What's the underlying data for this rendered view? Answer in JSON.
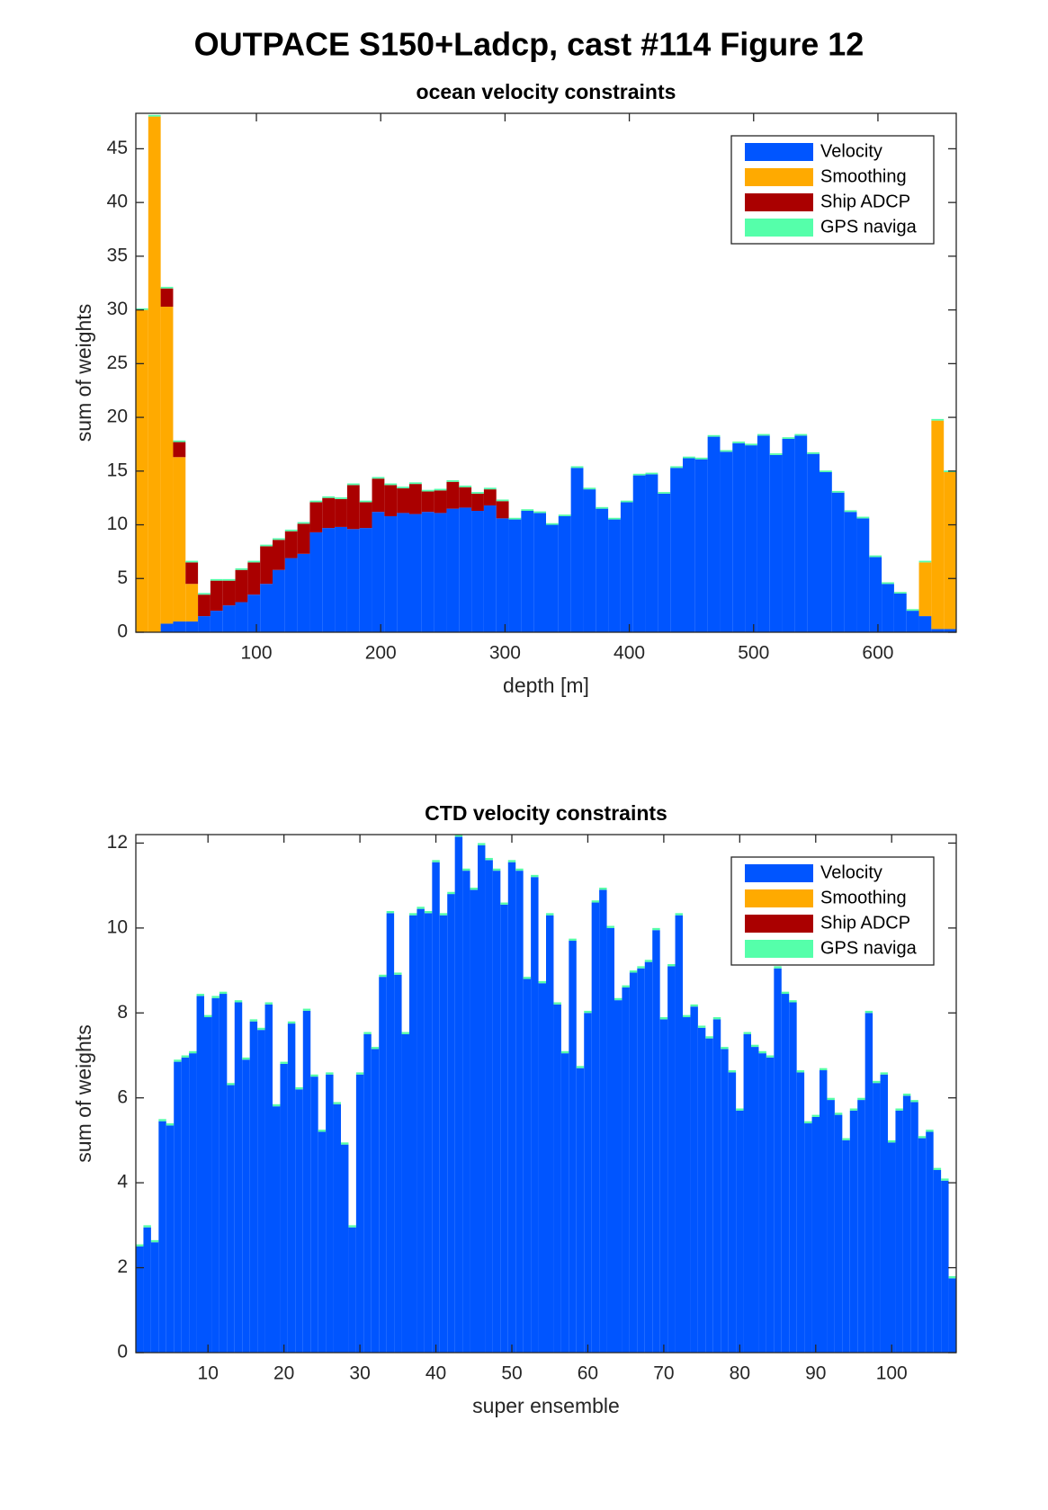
{
  "figure_title": "OUTPACE S150+Ladcp, cast #114  Figure 12",
  "chart_data": [
    {
      "type": "bar",
      "stacked": true,
      "title": "ocean velocity constraints",
      "xlabel": "depth [m]",
      "ylabel": "sum of weights",
      "x": [
        8,
        18,
        28,
        38,
        48,
        58,
        68,
        78,
        88,
        98,
        108,
        118,
        128,
        138,
        148,
        158,
        168,
        178,
        188,
        198,
        208,
        218,
        228,
        238,
        248,
        258,
        268,
        278,
        288,
        298,
        308,
        318,
        328,
        338,
        348,
        358,
        368,
        378,
        388,
        398,
        408,
        418,
        428,
        438,
        448,
        458,
        468,
        478,
        488,
        498,
        508,
        518,
        528,
        538,
        548,
        558,
        568,
        578,
        588,
        598,
        608,
        618,
        628,
        638,
        648,
        658
      ],
      "series": [
        {
          "name": "Velocity",
          "color": "#0055ff",
          "values": [
            0,
            0,
            0.8,
            1,
            1,
            1.5,
            2,
            2.5,
            2.8,
            3.5,
            4.5,
            5.8,
            6.9,
            7.3,
            9.3,
            9.7,
            9.8,
            9.6,
            9.7,
            11.2,
            10.8,
            11.1,
            11,
            11.2,
            11.1,
            11.5,
            11.6,
            11.3,
            11.8,
            10.6,
            10.5,
            11.3,
            11.1,
            10,
            10.8,
            15.3,
            13.3,
            11.5,
            10.5,
            12.1,
            14.6,
            14.7,
            12.9,
            15.3,
            16.2,
            16.1,
            18.2,
            16.8,
            17.6,
            17.4,
            18.3,
            16.5,
            18,
            18.3,
            16.6,
            14.9,
            13,
            11.2,
            10.6,
            7,
            4.5,
            3.6,
            2,
            1.5,
            0.3,
            0.3
          ]
        },
        {
          "name": "Smoothing",
          "color": "#ffaa00",
          "values": [
            30,
            48,
            29.5,
            15.3,
            3.5,
            0,
            0,
            0,
            0,
            0,
            0,
            0,
            0,
            0,
            0,
            0,
            0,
            0,
            0,
            0,
            0,
            0,
            0,
            0,
            0,
            0,
            0,
            0,
            0,
            0,
            0,
            0,
            0,
            0,
            0,
            0,
            0,
            0,
            0,
            0,
            0,
            0,
            0,
            0,
            0,
            0,
            0,
            0,
            0,
            0,
            0,
            0,
            0,
            0,
            0,
            0,
            0,
            0,
            0,
            0,
            0,
            0,
            0,
            5,
            19.4,
            14.6
          ]
        },
        {
          "name": "Ship ADCP",
          "color": "#aa0000",
          "values": [
            0,
            0,
            1.7,
            1.4,
            2,
            2,
            2.8,
            2.3,
            3,
            3,
            3.5,
            2.8,
            2.5,
            2.8,
            2.8,
            2.8,
            2.6,
            4.1,
            2.4,
            3.1,
            2.9,
            2.3,
            2.8,
            1.9,
            2.1,
            2.5,
            1.9,
            1.6,
            1.5,
            1.6,
            0,
            0,
            0,
            0,
            0,
            0,
            0,
            0,
            0,
            0,
            0,
            0,
            0,
            0,
            0,
            0,
            0,
            0,
            0,
            0,
            0,
            0,
            0,
            0,
            0,
            0,
            0,
            0,
            0,
            0,
            0,
            0,
            0,
            0,
            0,
            0
          ]
        },
        {
          "name": "GPS naviga",
          "color": "#55ffaa",
          "values": [
            0.15,
            0.15,
            0.15,
            0.15,
            0.15,
            0.15,
            0.15,
            0.15,
            0.15,
            0.15,
            0.15,
            0.15,
            0.15,
            0.15,
            0.15,
            0.15,
            0.15,
            0.15,
            0.15,
            0.15,
            0.15,
            0.15,
            0.15,
            0.15,
            0.15,
            0.15,
            0.15,
            0.15,
            0.15,
            0.15,
            0.15,
            0.15,
            0.15,
            0.15,
            0.15,
            0.15,
            0.15,
            0.15,
            0.15,
            0.15,
            0.15,
            0.15,
            0.15,
            0.15,
            0.15,
            0.15,
            0.15,
            0.15,
            0.15,
            0.15,
            0.15,
            0.15,
            0.15,
            0.15,
            0.15,
            0.15,
            0.15,
            0.15,
            0.15,
            0.15,
            0.15,
            0.15,
            0.15,
            0.15,
            0.15,
            0.15
          ]
        }
      ],
      "xlim": [
        3,
        663
      ],
      "xticks": [
        100,
        200,
        300,
        400,
        500,
        600
      ],
      "ylim": [
        0,
        48.3
      ],
      "yticks": [
        0,
        5,
        10,
        15,
        20,
        25,
        30,
        35,
        40,
        45
      ],
      "legend": "upper right"
    },
    {
      "type": "bar",
      "stacked": true,
      "title": "CTD velocity constraints",
      "xlabel": "super ensemble",
      "ylabel": "sum of weights",
      "x": [
        1,
        2,
        3,
        4,
        5,
        6,
        7,
        8,
        9,
        10,
        11,
        12,
        13,
        14,
        15,
        16,
        17,
        18,
        19,
        20,
        21,
        22,
        23,
        24,
        25,
        26,
        27,
        28,
        29,
        30,
        31,
        32,
        33,
        34,
        35,
        36,
        37,
        38,
        39,
        40,
        41,
        42,
        43,
        44,
        45,
        46,
        47,
        48,
        49,
        50,
        51,
        52,
        53,
        54,
        55,
        56,
        57,
        58,
        59,
        60,
        61,
        62,
        63,
        64,
        65,
        66,
        67,
        68,
        69,
        70,
        71,
        72,
        73,
        74,
        75,
        76,
        77,
        78,
        79,
        80,
        81,
        82,
        83,
        84,
        85,
        86,
        87,
        88,
        89,
        90,
        91,
        92,
        93,
        94,
        95,
        96,
        97,
        98,
        99,
        100,
        101,
        102,
        103,
        104,
        105,
        106,
        107,
        108
      ],
      "series": [
        {
          "name": "Velocity",
          "color": "#0055ff",
          "values": [
            2.5,
            2.95,
            2.6,
            5.45,
            5.35,
            6.85,
            6.95,
            7.05,
            8.4,
            7.9,
            8.35,
            8.45,
            6.3,
            8.25,
            6.9,
            7.8,
            7.6,
            8.2,
            5.8,
            6.8,
            7.75,
            6.2,
            8.05,
            6.5,
            5.2,
            6.55,
            5.85,
            4.9,
            2.95,
            6.55,
            7.5,
            7.15,
            8.85,
            10.35,
            8.9,
            7.5,
            10.3,
            10.45,
            10.35,
            11.55,
            10.3,
            10.8,
            12.15,
            11.35,
            10.9,
            11.95,
            11.6,
            11.35,
            10.55,
            11.55,
            11.35,
            8.8,
            11.2,
            8.7,
            10.3,
            8.2,
            7.05,
            9.7,
            6.7,
            8.0,
            10.6,
            10.9,
            10.0,
            8.3,
            8.6,
            8.95,
            9.05,
            9.2,
            9.95,
            7.85,
            9.1,
            10.3,
            7.9,
            8.15,
            7.65,
            7.4,
            7.85,
            7.15,
            6.6,
            5.7,
            7.5,
            7.2,
            7.05,
            6.95,
            9.05,
            8.45,
            8.25,
            6.6,
            5.4,
            5.55,
            6.65,
            5.95,
            5.6,
            5.0,
            5.7,
            5.95,
            8.0,
            6.35,
            6.55,
            4.95,
            5.7,
            6.05,
            5.9,
            5.05,
            5.2,
            4.3,
            4.05,
            1.75
          ]
        },
        {
          "name": "Smoothing",
          "color": "#ffaa00",
          "values": [
            0,
            0,
            0,
            0,
            0,
            0,
            0,
            0,
            0,
            0,
            0,
            0,
            0,
            0,
            0,
            0,
            0,
            0,
            0,
            0,
            0,
            0,
            0,
            0,
            0,
            0,
            0,
            0,
            0,
            0,
            0,
            0,
            0,
            0,
            0,
            0,
            0,
            0,
            0,
            0,
            0,
            0,
            0,
            0,
            0,
            0,
            0,
            0,
            0,
            0,
            0,
            0,
            0,
            0,
            0,
            0,
            0,
            0,
            0,
            0,
            0,
            0,
            0,
            0,
            0,
            0,
            0,
            0,
            0,
            0,
            0,
            0,
            0,
            0,
            0,
            0,
            0,
            0,
            0,
            0,
            0,
            0,
            0,
            0,
            0,
            0,
            0,
            0,
            0,
            0,
            0,
            0,
            0,
            0,
            0,
            0,
            0,
            0,
            0,
            0,
            0,
            0,
            0,
            0,
            0,
            0,
            0,
            0
          ]
        },
        {
          "name": "Ship ADCP",
          "color": "#aa0000",
          "values": [
            0,
            0,
            0,
            0,
            0,
            0,
            0,
            0,
            0,
            0,
            0,
            0,
            0,
            0,
            0,
            0,
            0,
            0,
            0,
            0,
            0,
            0,
            0,
            0,
            0,
            0,
            0,
            0,
            0,
            0,
            0,
            0,
            0,
            0,
            0,
            0,
            0,
            0,
            0,
            0,
            0,
            0,
            0,
            0,
            0,
            0,
            0,
            0,
            0,
            0,
            0,
            0,
            0,
            0,
            0,
            0,
            0,
            0,
            0,
            0,
            0,
            0,
            0,
            0,
            0,
            0,
            0,
            0,
            0,
            0,
            0,
            0,
            0,
            0,
            0,
            0,
            0,
            0,
            0,
            0,
            0,
            0,
            0,
            0,
            0,
            0,
            0,
            0,
            0,
            0,
            0,
            0,
            0,
            0,
            0,
            0,
            0,
            0,
            0,
            0,
            0,
            0,
            0,
            0,
            0,
            0,
            0,
            0
          ]
        },
        {
          "name": "GPS naviga",
          "color": "#55ffaa",
          "values": [
            0.05,
            0.05,
            0.05,
            0.05,
            0.05,
            0.05,
            0.05,
            0.05,
            0.05,
            0.05,
            0.05,
            0.05,
            0.05,
            0.05,
            0.05,
            0.05,
            0.05,
            0.05,
            0.05,
            0.05,
            0.05,
            0.05,
            0.05,
            0.05,
            0.05,
            0.05,
            0.05,
            0.05,
            0.05,
            0.05,
            0.05,
            0.05,
            0.05,
            0.05,
            0.05,
            0.05,
            0.05,
            0.05,
            0.05,
            0.05,
            0.05,
            0.05,
            0.05,
            0.05,
            0.05,
            0.05,
            0.05,
            0.05,
            0.05,
            0.05,
            0.05,
            0.05,
            0.05,
            0.05,
            0.05,
            0.05,
            0.05,
            0.05,
            0.05,
            0.05,
            0.05,
            0.05,
            0.05,
            0.05,
            0.05,
            0.05,
            0.05,
            0.05,
            0.05,
            0.05,
            0.05,
            0.05,
            0.05,
            0.05,
            0.05,
            0.05,
            0.05,
            0.05,
            0.05,
            0.05,
            0.05,
            0.05,
            0.05,
            0.05,
            0.05,
            0.05,
            0.05,
            0.05,
            0.05,
            0.05,
            0.05,
            0.05,
            0.05,
            0.05,
            0.05,
            0.05,
            0.05,
            0.05,
            0.05,
            0.05,
            0.05,
            0.05,
            0.05,
            0.05,
            0.05,
            0.05,
            0.05,
            0.05
          ]
        }
      ],
      "xlim": [
        0.5,
        108.5
      ],
      "xticks": [
        10,
        20,
        30,
        40,
        50,
        60,
        70,
        80,
        90,
        100
      ],
      "ylim": [
        0,
        12.2
      ],
      "yticks": [
        0,
        2,
        4,
        6,
        8,
        10,
        12
      ],
      "legend": "upper right"
    }
  ]
}
